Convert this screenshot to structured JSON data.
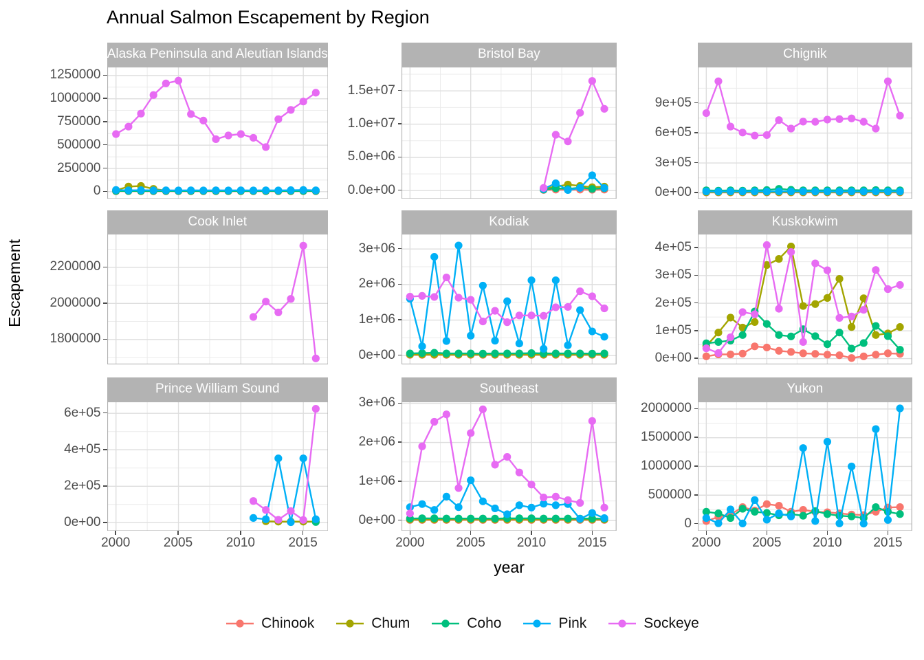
{
  "title": "Annual Salmon Escapement by Region",
  "y_axis_title": "Escapement",
  "x_axis_title": "year",
  "palette": {
    "Chinook": "#F8766D",
    "Chum": "#A3A500",
    "Coho": "#00BF7D",
    "Pink": "#00B0F6",
    "Sockeye": "#E76BF3"
  },
  "legend": [
    {
      "label": "Chinook",
      "color": "#F8766D"
    },
    {
      "label": "Chum",
      "color": "#A3A500"
    },
    {
      "label": "Coho",
      "color": "#00BF7D"
    },
    {
      "label": "Pink",
      "color": "#00B0F6"
    },
    {
      "label": "Sockeye",
      "color": "#E76BF3"
    }
  ],
  "style": {
    "strip_fill": "#b3b3b3",
    "strip_text": "#ffffff",
    "panel_bg": "#ffffff",
    "panel_border": "#b3b3b3",
    "grid_major": "#dedede",
    "grid_minor": "#ebebeb",
    "axis_text": "#4d4d4d"
  },
  "years": [
    2000,
    2001,
    2002,
    2003,
    2004,
    2005,
    2006,
    2007,
    2008,
    2009,
    2010,
    2011,
    2012,
    2013,
    2014,
    2015,
    2016
  ],
  "x_ticks": [
    {
      "v": 2000,
      "label": "2000"
    },
    {
      "v": 2005,
      "label": "2005"
    },
    {
      "v": 2010,
      "label": "2010"
    },
    {
      "v": 2015,
      "label": "2015"
    }
  ],
  "xlim": [
    1999.3,
    2017.0
  ],
  "chart_data": [
    {
      "type": "line",
      "title": "Alaska Peninsula and Aleutian Islands",
      "ylim": [
        -79000,
        1345000
      ],
      "y_ticks": [
        {
          "v": 0,
          "label": "0"
        },
        {
          "v": 250000,
          "label": "250000"
        },
        {
          "v": 500000,
          "label": "500000"
        },
        {
          "v": 750000,
          "label": "750000"
        },
        {
          "v": 1000000,
          "label": "1000000"
        },
        {
          "v": 1250000,
          "label": "1250000"
        }
      ],
      "series": [
        {
          "name": "Chinook",
          "values": [
            5000,
            6000,
            5000,
            5000,
            5000,
            5000,
            5000,
            5000,
            5000,
            5000,
            5000,
            5000,
            5000,
            5000,
            5000,
            6000,
            5000
          ]
        },
        {
          "name": "Chum",
          "values": [
            15000,
            55000,
            62000,
            30000,
            12000,
            10000,
            8000,
            8000,
            8000,
            8000,
            8000,
            8000,
            8000,
            8000,
            10000,
            15000,
            12000
          ]
        },
        {
          "name": "Coho",
          "values": [
            8000,
            8000,
            8000,
            8000,
            8000,
            8000,
            8000,
            8000,
            8000,
            8000,
            8000,
            8000,
            8000,
            8000,
            8000,
            8000,
            8000
          ]
        },
        {
          "name": "Pink",
          "values": [
            18000,
            15000,
            16000,
            15000,
            15000,
            14000,
            15000,
            14000,
            15000,
            14000,
            15000,
            14000,
            15000,
            14000,
            16000,
            18000,
            15000
          ]
        },
        {
          "name": "Sockeye",
          "values": [
            620000,
            700000,
            840000,
            1040000,
            1165000,
            1195000,
            835000,
            765000,
            565000,
            605000,
            620000,
            580000,
            480000,
            780000,
            880000,
            970000,
            1065000
          ]
        }
      ]
    },
    {
      "type": "line",
      "title": "Bristol Bay",
      "ylim": [
        -1270000,
        18640000
      ],
      "y_ticks": [
        {
          "v": 0,
          "label": "0.0e+00"
        },
        {
          "v": 5000000,
          "label": "5.0e+06"
        },
        {
          "v": 10000000,
          "label": "1.0e+07"
        },
        {
          "v": 15000000,
          "label": "1.5e+07"
        }
      ],
      "series": [
        {
          "name": "Chinook",
          "x": [
            2011,
            2012,
            2013,
            2014,
            2015,
            2016
          ],
          "values": [
            100000,
            150000,
            120000,
            150000,
            120000,
            150000
          ]
        },
        {
          "name": "Chum",
          "x": [
            2011,
            2012,
            2013,
            2014,
            2015,
            2016
          ],
          "values": [
            300000,
            600000,
            900000,
            700000,
            500000,
            600000
          ]
        },
        {
          "name": "Coho",
          "x": [
            2011,
            2012,
            2013,
            2014,
            2015,
            2016
          ],
          "values": [
            150000,
            350000,
            250000,
            450000,
            250000,
            350000
          ]
        },
        {
          "name": "Pink",
          "x": [
            2011,
            2012,
            2013,
            2014,
            2015,
            2016
          ],
          "values": [
            250000,
            1100000,
            80000,
            400000,
            2300000,
            400000
          ]
        },
        {
          "name": "Sockeye",
          "x": [
            2011,
            2012,
            2013,
            2014,
            2015,
            2016
          ],
          "values": [
            400000,
            8400000,
            7400000,
            11700000,
            16500000,
            12300000
          ]
        }
      ]
    },
    {
      "type": "line",
      "title": "Chignik",
      "ylim": [
        -62000,
        1266000
      ],
      "y_ticks": [
        {
          "v": 0,
          "label": "0e+00"
        },
        {
          "v": 300000,
          "label": "3e+05"
        },
        {
          "v": 600000,
          "label": "6e+05"
        },
        {
          "v": 900000,
          "label": "9e+05"
        }
      ],
      "series": [
        {
          "name": "Chinook",
          "values": [
            4000,
            4000,
            4000,
            4000,
            4000,
            4000,
            4000,
            4000,
            4000,
            4000,
            4000,
            4000,
            4000,
            4000,
            4000,
            4000,
            4000
          ]
        },
        {
          "name": "Chum",
          "values": [
            7000,
            7000,
            7000,
            7000,
            7000,
            7000,
            7000,
            7000,
            7000,
            7000,
            7000,
            7000,
            7000,
            7000,
            7000,
            7000,
            7000
          ]
        },
        {
          "name": "Coho",
          "values": [
            25000,
            22000,
            25000,
            22000,
            25000,
            28000,
            40000,
            30000,
            25000,
            25000,
            25000,
            25000,
            25000,
            25000,
            28000,
            25000,
            25000
          ]
        },
        {
          "name": "Pink",
          "values": [
            14000,
            13000,
            14000,
            13000,
            14000,
            13000,
            15000,
            14000,
            14000,
            13000,
            14000,
            13000,
            14000,
            13000,
            14000,
            14000,
            13000
          ]
        },
        {
          "name": "Sockeye",
          "values": [
            800000,
            1120000,
            665000,
            605000,
            575000,
            580000,
            730000,
            645000,
            715000,
            713000,
            735000,
            740000,
            747000,
            713000,
            645000,
            1120000,
            775000
          ]
        }
      ]
    },
    {
      "type": "line",
      "title": "Cook Inlet",
      "ylim": [
        1662000,
        2386000
      ],
      "y_ticks": [
        {
          "v": 1800000,
          "label": "1800000"
        },
        {
          "v": 2000000,
          "label": "2000000"
        },
        {
          "v": 2200000,
          "label": "2200000"
        }
      ],
      "series": [
        {
          "name": "Sockeye",
          "x": [
            2011,
            2012,
            2013,
            2014,
            2015,
            2016
          ],
          "values": [
            1925000,
            2010000,
            1950000,
            2025000,
            2320000,
            1695000
          ]
        }
      ]
    },
    {
      "type": "line",
      "title": "Kodiak",
      "ylim": [
        -248000,
        3430000
      ],
      "y_ticks": [
        {
          "v": 0,
          "label": "0e+00"
        },
        {
          "v": 1000000,
          "label": "1e+06"
        },
        {
          "v": 2000000,
          "label": "2e+06"
        },
        {
          "v": 3000000,
          "label": "3e+06"
        }
      ],
      "series": [
        {
          "name": "Chinook",
          "values": [
            20000,
            20000,
            20000,
            20000,
            20000,
            20000,
            20000,
            20000,
            20000,
            20000,
            20000,
            20000,
            20000,
            20000,
            20000,
            20000,
            20000
          ]
        },
        {
          "name": "Chum",
          "values": [
            30000,
            30000,
            30000,
            30000,
            30000,
            30000,
            30000,
            30000,
            30000,
            30000,
            30000,
            30000,
            30000,
            30000,
            30000,
            30000,
            30000
          ]
        },
        {
          "name": "Coho",
          "values": [
            60000,
            70000,
            80000,
            60000,
            60000,
            60000,
            55000,
            60000,
            60000,
            60000,
            70000,
            60000,
            60000,
            60000,
            60000,
            55000,
            60000
          ]
        },
        {
          "name": "Pink",
          "values": [
            1600000,
            260000,
            2780000,
            410000,
            3100000,
            560000,
            1970000,
            420000,
            1530000,
            340000,
            2120000,
            190000,
            2120000,
            290000,
            1280000,
            680000,
            530000
          ]
        },
        {
          "name": "Sockeye",
          "values": [
            1660000,
            1680000,
            1650000,
            2200000,
            1630000,
            1570000,
            960000,
            1260000,
            940000,
            1130000,
            1130000,
            1120000,
            1360000,
            1370000,
            1810000,
            1670000,
            1330000
          ]
        }
      ]
    },
    {
      "type": "line",
      "title": "Kuskokwim",
      "ylim": [
        -21000,
        451000
      ],
      "y_ticks": [
        {
          "v": 0,
          "label": "0e+00"
        },
        {
          "v": 100000,
          "label": "1e+05"
        },
        {
          "v": 200000,
          "label": "2e+05"
        },
        {
          "v": 300000,
          "label": "3e+05"
        },
        {
          "v": 400000,
          "label": "4e+05"
        }
      ],
      "series": [
        {
          "name": "Chinook",
          "values": [
            8000,
            15000,
            15000,
            18000,
            44000,
            40000,
            28000,
            24000,
            19000,
            17000,
            14000,
            12000,
            2000,
            8000,
            14000,
            19000,
            17000
          ]
        },
        {
          "name": "Chum",
          "values": [
            45000,
            94000,
            148000,
            112000,
            132000,
            338000,
            360000,
            405000,
            190000,
            197000,
            219000,
            288000,
            114000,
            218000,
            85000,
            91000,
            114000
          ]
        },
        {
          "name": "Coho",
          "values": [
            55000,
            60000,
            65000,
            85000,
            170000,
            125000,
            85000,
            80000,
            106000,
            81000,
            52000,
            94000,
            36000,
            56000,
            118000,
            81000,
            32000
          ]
        },
        {
          "name": "Sockeye",
          "values": [
            37000,
            20000,
            77000,
            168000,
            160000,
            410000,
            180000,
            385000,
            60000,
            344000,
            319000,
            147000,
            152000,
            176000,
            320000,
            251000,
            266000
          ]
        }
      ]
    },
    {
      "type": "line",
      "title": "Prince William Sound",
      "ylim": [
        -46000,
        665000
      ],
      "y_ticks": [
        {
          "v": 0,
          "label": "0e+00"
        },
        {
          "v": 200000,
          "label": "2e+05"
        },
        {
          "v": 400000,
          "label": "4e+05"
        },
        {
          "v": 600000,
          "label": "6e+05"
        }
      ],
      "series": [
        {
          "name": "Chum",
          "x": [
            2012,
            2013,
            2014,
            2015,
            2016
          ],
          "values": [
            8000,
            6000,
            6000,
            6000,
            6000
          ]
        },
        {
          "name": "Coho",
          "x": [
            2016
          ],
          "values": [
            4000
          ]
        },
        {
          "name": "Pink",
          "x": [
            2011,
            2012,
            2013,
            2014,
            2015,
            2016
          ],
          "values": [
            26000,
            19000,
            353000,
            3000,
            353000,
            19000
          ]
        },
        {
          "name": "Sockeye",
          "x": [
            2011,
            2012,
            2013,
            2014,
            2015,
            2016
          ],
          "values": [
            119000,
            70000,
            16000,
            64000,
            15000,
            625000
          ]
        }
      ]
    },
    {
      "type": "line",
      "title": "Southeast",
      "ylim": [
        -273000,
        3050000
      ],
      "y_ticks": [
        {
          "v": 0,
          "label": "0e+00"
        },
        {
          "v": 1000000,
          "label": "1e+06"
        },
        {
          "v": 2000000,
          "label": "2e+06"
        },
        {
          "v": 3000000,
          "label": "3e+06"
        }
      ],
      "series": [
        {
          "name": "Chinook",
          "values": [
            12000,
            12000,
            12000,
            12000,
            12000,
            12000,
            12000,
            12000,
            12000,
            12000,
            12000,
            12000,
            12000,
            12000,
            12000,
            12000,
            12000
          ]
        },
        {
          "name": "Chum",
          "values": [
            25000,
            25000,
            25000,
            25000,
            25000,
            25000,
            25000,
            25000,
            25000,
            25000,
            25000,
            25000,
            25000,
            25000,
            25000,
            25000,
            25000
          ]
        },
        {
          "name": "Coho",
          "values": [
            50000,
            55000,
            55000,
            50000,
            50000,
            50000,
            50000,
            48000,
            55000,
            55000,
            55000,
            50000,
            50000,
            50000,
            48000,
            50000,
            45000
          ]
        },
        {
          "name": "Pink",
          "values": [
            340000,
            420000,
            270000,
            610000,
            340000,
            1030000,
            490000,
            310000,
            160000,
            390000,
            330000,
            430000,
            390000,
            420000,
            40000,
            190000,
            60000
          ]
        },
        {
          "name": "Sockeye",
          "values": [
            180000,
            1900000,
            2530000,
            2720000,
            830000,
            2240000,
            2850000,
            1430000,
            1630000,
            1230000,
            920000,
            590000,
            610000,
            520000,
            450000,
            2550000,
            330000
          ]
        }
      ]
    },
    {
      "type": "line",
      "title": "Yukon",
      "ylim": [
        -125000,
        2130000
      ],
      "y_ticks": [
        {
          "v": 0,
          "label": "0"
        },
        {
          "v": 500000,
          "label": "500000"
        },
        {
          "v": 1000000,
          "label": "1000000"
        },
        {
          "v": 1500000,
          "label": "1500000"
        },
        {
          "v": 2000000,
          "label": "2000000"
        }
      ],
      "series": [
        {
          "name": "Chinook",
          "values": [
            49000,
            122000,
            163000,
            293000,
            232000,
            345000,
            317000,
            211000,
            244000,
            211000,
            203000,
            183000,
            163000,
            154000,
            211000,
            285000,
            293000
          ]
        },
        {
          "name": "Coho",
          "values": [
            211000,
            183000,
            102000,
            264000,
            211000,
            191000,
            150000,
            171000,
            142000,
            224000,
            171000,
            142000,
            130000,
            102000,
            293000,
            211000,
            171000
          ]
        },
        {
          "name": "Pink",
          "values": [
            102000,
            10000,
            252000,
            8000,
            415000,
            73000,
            183000,
            130000,
            1320000,
            49000,
            1430000,
            8000,
            1000000,
            5000,
            1650000,
            69000,
            2010000
          ]
        }
      ]
    }
  ]
}
